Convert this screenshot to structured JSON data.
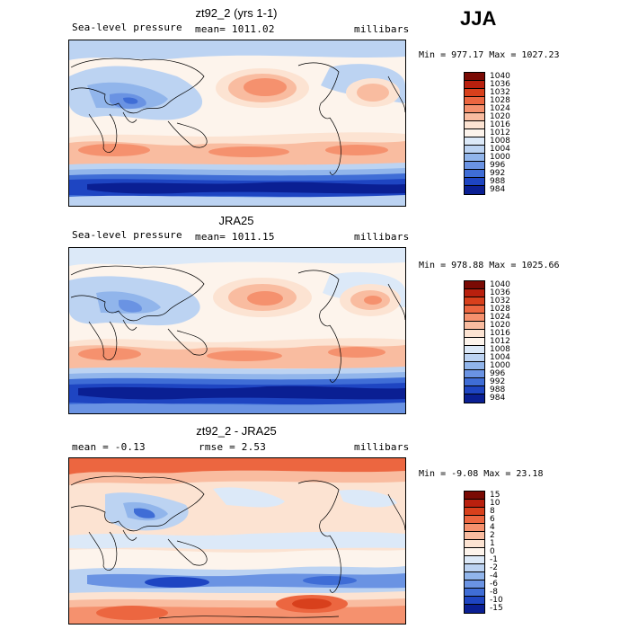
{
  "season": "JJA",
  "panels": [
    {
      "title": "zt92_2 (yrs 1-1)",
      "left_label": "Sea-level pressure",
      "center_label": "mean= 1011.02",
      "right_label": "millibars",
      "minmax": "Min = 977.17 Max = 1027.23",
      "colorbar_labels": [
        "1040",
        "1036",
        "1032",
        "1028",
        "1024",
        "1020",
        "1016",
        "1012",
        "1008",
        "1004",
        "1000",
        "996",
        "992",
        "988",
        "984"
      ],
      "colorbar_colors": [
        "#7a0a04",
        "#b9200e",
        "#d8401c",
        "#ec6640",
        "#f5916e",
        "#f9bca0",
        "#fce3d2",
        "#fdf4ec",
        "#dce9f8",
        "#bcd3f2",
        "#91b5eb",
        "#6a93e3",
        "#3f6dd6",
        "#1e45c2",
        "#0a1f93"
      ]
    },
    {
      "title": "JRA25",
      "left_label": "Sea-level pressure",
      "center_label": "mean= 1011.15",
      "right_label": "millibars",
      "minmax": "Min = 978.88 Max = 1025.66",
      "colorbar_labels": [
        "1040",
        "1036",
        "1032",
        "1028",
        "1024",
        "1020",
        "1016",
        "1012",
        "1008",
        "1004",
        "1000",
        "996",
        "992",
        "988",
        "984"
      ],
      "colorbar_colors": [
        "#7a0a04",
        "#b9200e",
        "#d8401c",
        "#ec6640",
        "#f5916e",
        "#f9bca0",
        "#fce3d2",
        "#fdf4ec",
        "#dce9f8",
        "#bcd3f2",
        "#91b5eb",
        "#6a93e3",
        "#3f6dd6",
        "#1e45c2",
        "#0a1f93"
      ]
    },
    {
      "title": "zt92_2 - JRA25",
      "left_label": "mean =   -0.13",
      "center_label": "rmse =    2.53",
      "right_label": "millibars",
      "minmax": "Min =  -9.08 Max =  23.18",
      "colorbar_labels": [
        "15",
        "10",
        "8",
        "6",
        "4",
        "2",
        "1",
        "0",
        "-1",
        "-2",
        "-4",
        "-6",
        "-8",
        "-10",
        "-15"
      ],
      "colorbar_colors": [
        "#7a0a04",
        "#b9200e",
        "#d8401c",
        "#ec6640",
        "#f5916e",
        "#f9bca0",
        "#fce3d2",
        "#fdf4ec",
        "#dce9f8",
        "#bcd3f2",
        "#91b5eb",
        "#6a93e3",
        "#3f6dd6",
        "#1e45c2",
        "#0a1f93"
      ]
    }
  ]
}
